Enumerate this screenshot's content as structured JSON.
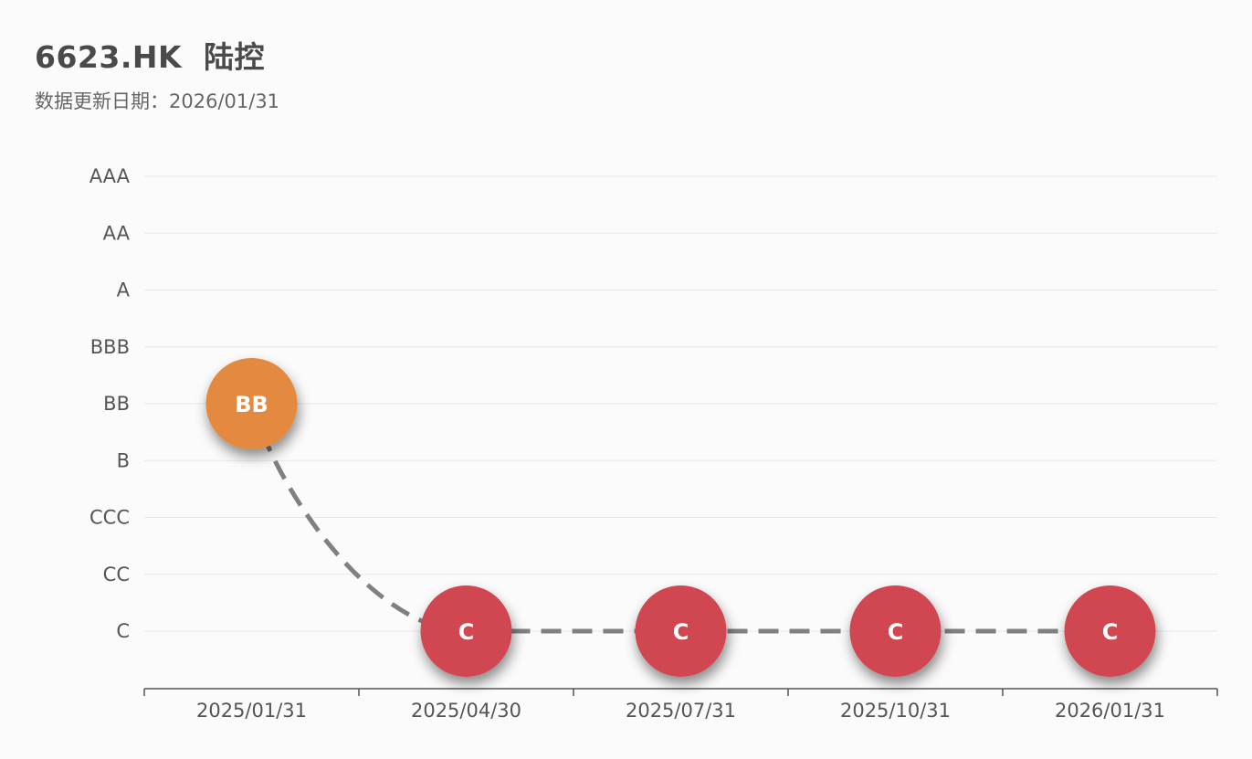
{
  "header": {
    "title": "6623.HK  陆控",
    "update_label": "数据更新日期：",
    "update_date": "2026/01/31"
  },
  "chart_data": {
    "type": "scatter",
    "title": "6623.HK  陆控",
    "subtitle": "数据更新日期：2026/01/31",
    "xlabel": "",
    "ylabel": "",
    "y_categories": [
      "C",
      "CC",
      "CCC",
      "B",
      "BB",
      "BBB",
      "A",
      "AA",
      "AAA"
    ],
    "x": [
      "2025/01/31",
      "2025/04/30",
      "2025/07/31",
      "2025/10/31",
      "2026/01/31"
    ],
    "values": [
      "BB",
      "C",
      "C",
      "C",
      "C"
    ],
    "grid": true,
    "legend": "none",
    "colors": {
      "BB": "#e38a3f",
      "C": "#d04651",
      "line": "#808080",
      "grid": "#e3e7ef",
      "axis": "#555555"
    }
  }
}
